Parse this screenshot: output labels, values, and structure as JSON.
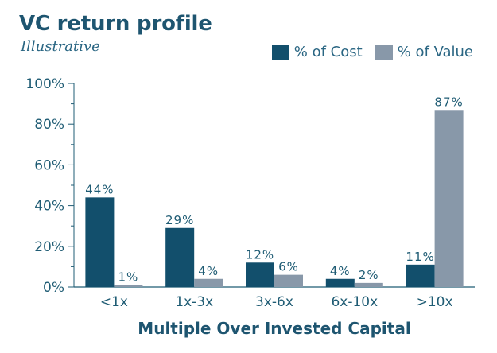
{
  "title": "VC return profile",
  "subtitle": "Illustrative",
  "colors": {
    "cost": "#124f6c",
    "value": "#8898a9",
    "text": "#1f5c74",
    "axis": "#1f5c74"
  },
  "chart_data": {
    "type": "bar",
    "title": "VC return profile",
    "subtitle": "Illustrative",
    "xlabel": "Multiple Over Invested Capital",
    "ylabel": "",
    "ylim": [
      0,
      100
    ],
    "yticks": [
      "0%",
      "20%",
      "40%",
      "60%",
      "80%",
      "100%"
    ],
    "categories": [
      "<1x",
      "1x-3x",
      "3x-6x",
      "6x-10x",
      ">10x"
    ],
    "series": [
      {
        "name": "% of Cost",
        "values": [
          44,
          29,
          12,
          4,
          11
        ],
        "labels": [
          "44%",
          "29%",
          "12%",
          "4%",
          "11%"
        ]
      },
      {
        "name": "% of Value",
        "values": [
          1,
          4,
          6,
          2,
          87
        ],
        "labels": [
          "1%",
          "4%",
          "6%",
          "2%",
          "87%"
        ]
      }
    ],
    "grid": false,
    "legend": "top-right"
  }
}
